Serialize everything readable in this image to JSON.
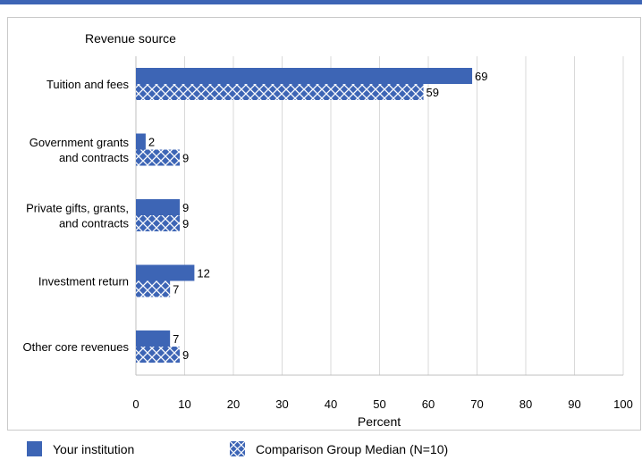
{
  "colors": {
    "bar": "#3d65b5",
    "hatch": "#ffffff",
    "grid": "#d9d9d9",
    "axis": "#bfbfbf",
    "frame_border": "#c9c9c9"
  },
  "chart_data": {
    "type": "bar",
    "orientation": "horizontal",
    "title": "",
    "category_axis_label": "Revenue source",
    "xlabel": "Percent",
    "xlim": [
      0,
      100
    ],
    "xticks": [
      0,
      10,
      20,
      30,
      40,
      50,
      60,
      70,
      80,
      90,
      100
    ],
    "grid": true,
    "legend_position": "bottom",
    "categories": [
      [
        "Tuition and fees"
      ],
      [
        "Government grants",
        "and contracts"
      ],
      [
        "Private gifts, grants,",
        "and contracts"
      ],
      [
        "Investment return"
      ],
      [
        "Other core revenues"
      ]
    ],
    "series": [
      {
        "name": "Your institution",
        "pattern": "solid",
        "values": [
          69,
          2,
          9,
          12,
          7
        ]
      },
      {
        "name": "Comparison Group Median (N=10)",
        "pattern": "crosshatch",
        "values": [
          59,
          9,
          9,
          7,
          9
        ]
      }
    ]
  }
}
